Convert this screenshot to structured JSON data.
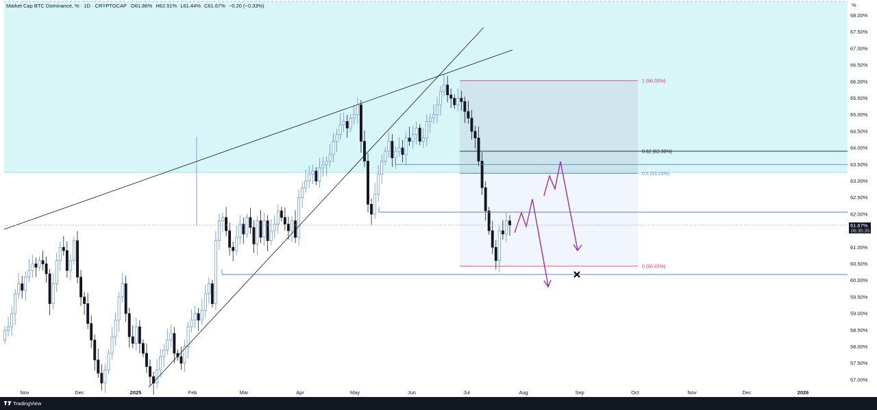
{
  "header": {
    "title": "Market Cap BTC Dominance, % · 1D · CRYPTOCAP",
    "open": "O61.86%",
    "high": "H62.51%",
    "low": "L61.44%",
    "close": "C61.67%",
    "change": "−0.20 (−0.33%)"
  },
  "footer": {
    "brand": "TradingView"
  },
  "price_axis": {
    "unit": "%",
    "labels": [
      "68.00%",
      "67.50%",
      "67.00%",
      "66.50%",
      "66.00%",
      "65.50%",
      "65.00%",
      "64.50%",
      "64.00%",
      "63.50%",
      "63.00%",
      "62.50%",
      "62.00%",
      "61.50%",
      "61.00%",
      "60.50%",
      "60.00%",
      "59.50%",
      "59.00%",
      "58.50%",
      "58.00%",
      "57.50%",
      "57.00%"
    ],
    "current_price": "61.67%",
    "countdown": "06:35:35"
  },
  "time_axis": {
    "labels": [
      "Nov",
      "Dec",
      "2025",
      "Feb",
      "Mar",
      "Apr",
      "May",
      "Jun",
      "Jul",
      "Aug",
      "Sep",
      "Oct",
      "Nov",
      "Dec",
      "2026"
    ]
  },
  "fib": {
    "levels": [
      {
        "label": "1 (66.03%)",
        "ratio": 1,
        "price": 66.03,
        "color": "#e0317a"
      },
      {
        "label": "0.62 (63.90%)",
        "ratio": 0.62,
        "price": 63.9,
        "color": "#131722"
      },
      {
        "label": "0.5 (63.23%)",
        "ratio": 0.5,
        "price": 63.23,
        "color": "#5b8fe6"
      },
      {
        "label": "0 (60.43%)",
        "ratio": 0,
        "price": 60.43,
        "color": "#e0317a"
      }
    ]
  },
  "colors": {
    "up": "#5b8fe6",
    "down": "#131722",
    "zone": "#d8f5f7",
    "fib_box": "#eef3fd",
    "projection": "#9b2bb3",
    "support": "#5b7fc9"
  },
  "chart_data": {
    "type": "candlestick",
    "symbol": "CRYPTOCAP",
    "interval": "1D",
    "yrange": [
      56.75,
      68.2
    ],
    "close_series": [
      [
        58.5,
        58.6,
        59.0,
        59.6,
        59.9,
        59.7,
        60.1,
        60.3,
        60.5,
        60.4,
        60.6,
        60.5,
        60.2,
        59.3,
        59.9,
        60.6,
        61.0,
        60.9,
        60.3,
        60.6,
        61.2,
        60.1,
        59.5,
        59.3,
        58.7,
        58.2,
        57.6,
        57.2,
        56.9,
        57.3,
        57.8,
        58.3,
        58.8,
        59.5,
        59.9,
        59.0,
        58.3,
        58.1,
        58.6,
        58.1,
        57.8,
        57.4,
        57.1,
        56.9,
        57.3,
        57.7,
        57.9,
        58.2,
        58.4,
        57.8,
        57.7,
        57.5,
        58.0,
        58.6,
        58.8,
        59.0,
        58.8,
        59.1,
        59.6,
        59.9,
        59.3,
        61.2,
        61.8,
        61.9,
        61.5,
        61.0,
        60.9,
        61.3,
        61.7,
        61.4,
        61.9,
        61.6,
        61.1,
        61.8,
        61.3,
        61.8,
        61.2,
        61.5,
        61.7,
        62.1,
        61.9,
        61.7,
        61.5,
        61.8,
        61.3,
        62.5,
        62.8,
        63.0,
        63.2,
        63.3,
        63.0,
        63.4,
        63.5,
        63.6,
        63.8,
        64.2,
        64.4,
        64.7,
        64.8,
        64.6,
        64.9,
        65.0,
        65.3,
        64.2,
        63.6,
        62.3,
        62.0,
        62.6,
        63.2,
        63.6,
        63.9,
        64.2,
        63.7,
        63.9,
        64.0,
        63.8,
        64.3,
        64.2,
        64.4,
        64.6,
        64.2,
        64.3,
        64.8,
        64.9,
        65.0,
        65.3,
        65.7,
        65.9,
        65.6,
        65.5,
        65.3,
        65.5,
        65.4,
        65.1,
        64.9,
        64.5,
        64.3,
        63.6,
        62.8,
        62.1,
        61.5,
        61.0,
        60.6,
        61.5,
        61.4,
        61.8,
        61.67
      ]
    ],
    "overlays": [
      {
        "name": "resistance-trendline",
        "type": "line"
      },
      {
        "name": "support-trendline",
        "type": "line"
      },
      {
        "name": "horizontal-level",
        "price": 63.5
      },
      {
        "name": "horizontal-level",
        "price": 62.06
      },
      {
        "name": "horizontal-level",
        "price": 60.18
      }
    ],
    "grid": false
  }
}
